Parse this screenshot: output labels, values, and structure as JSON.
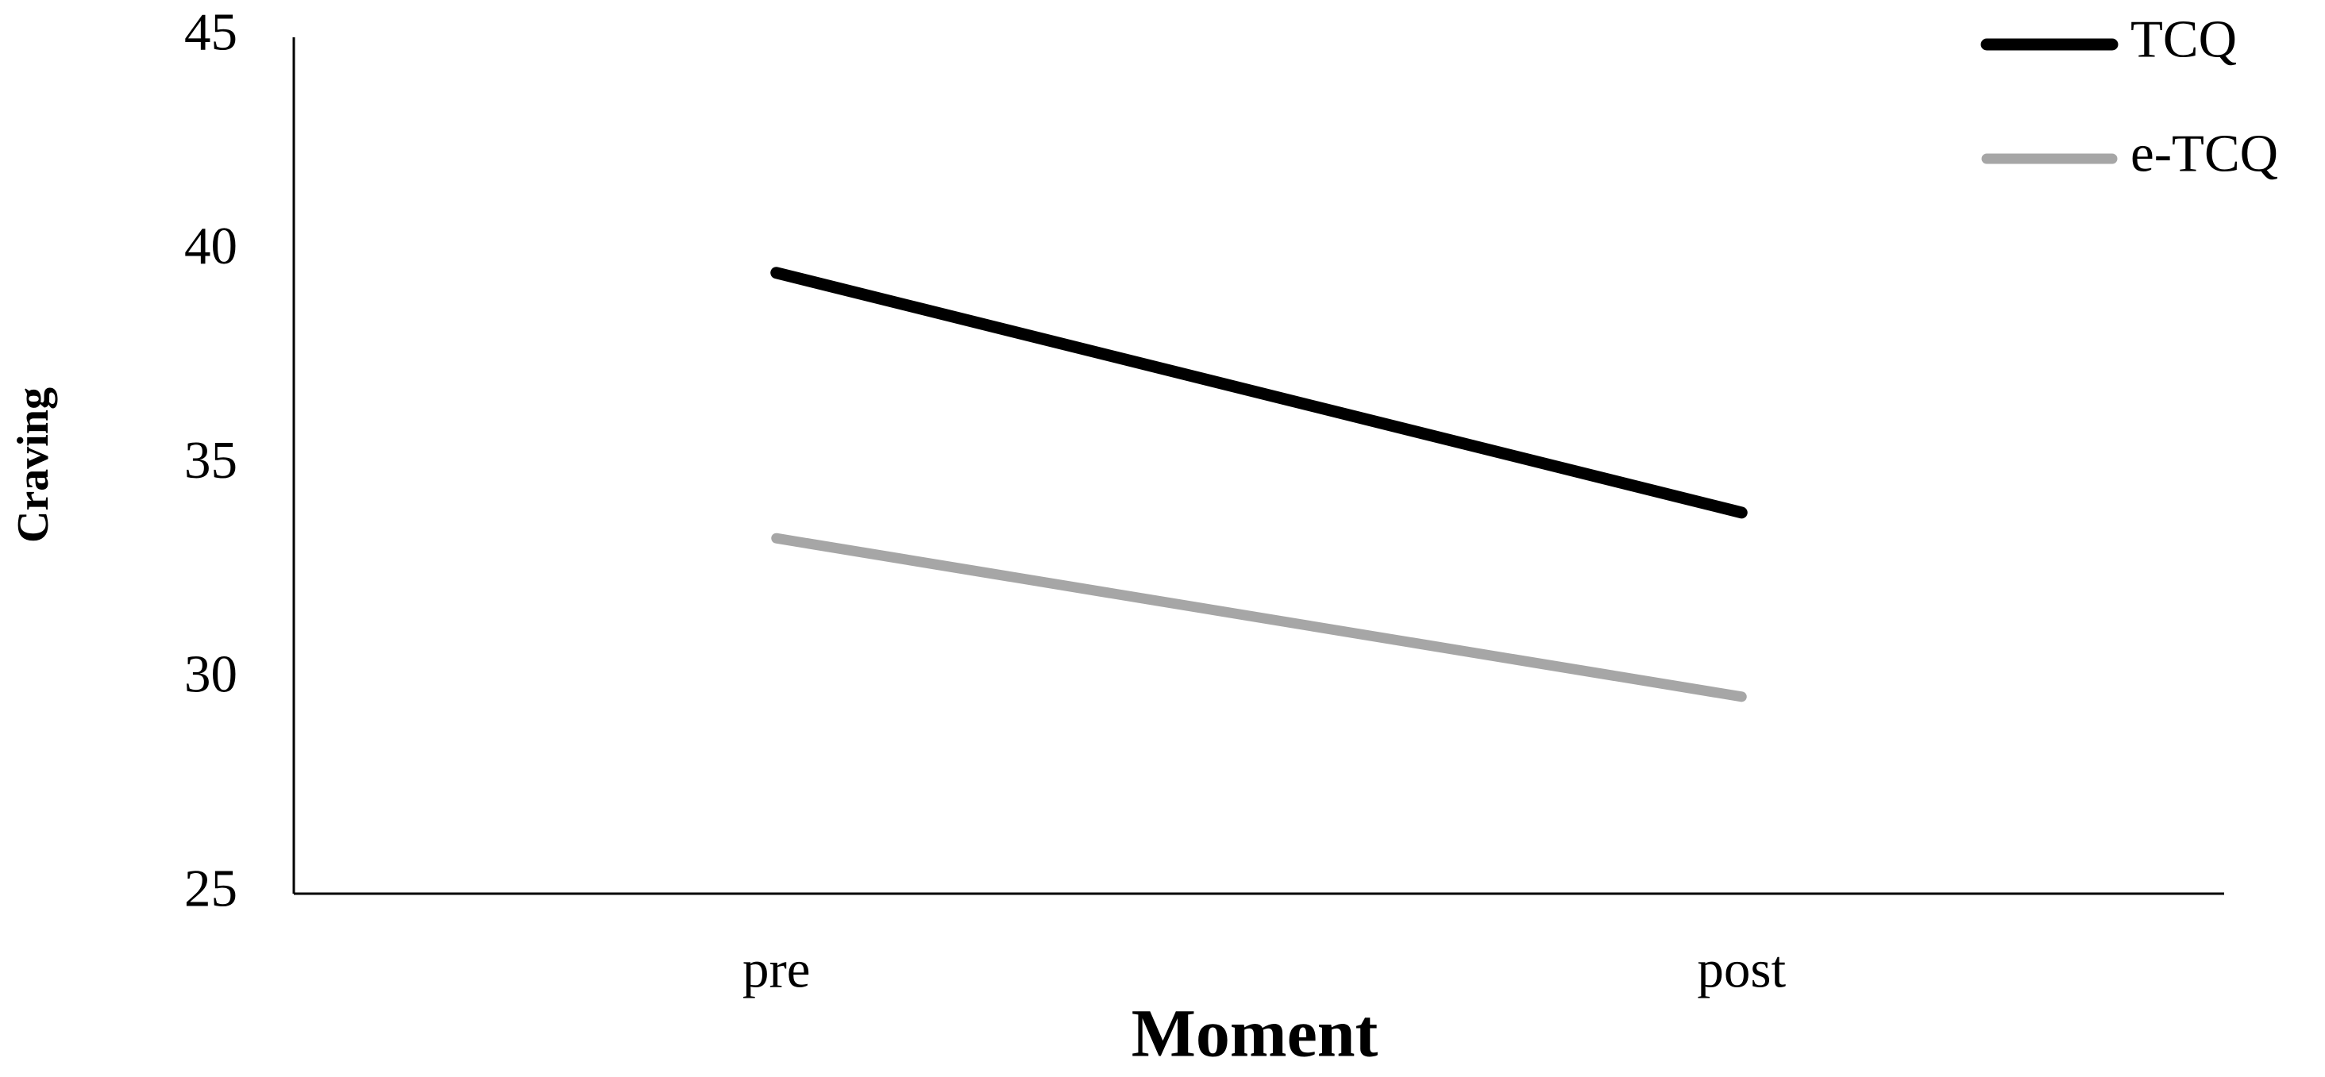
{
  "chart_data": {
    "type": "line",
    "x_label": "Moment",
    "y_label": "Craving",
    "categories": [
      "pre",
      "post"
    ],
    "series": [
      {
        "name": "TCQ",
        "color": "#000000",
        "values": [
          39.5,
          33.9
        ]
      },
      {
        "name": "e-TCQ",
        "color": "#a6a6a6",
        "values": [
          33.3,
          29.6
        ]
      }
    ],
    "ylim": [
      25,
      45
    ],
    "yticks": [
      25,
      30,
      35,
      40,
      45
    ],
    "grid": false,
    "legend": "top-right"
  }
}
